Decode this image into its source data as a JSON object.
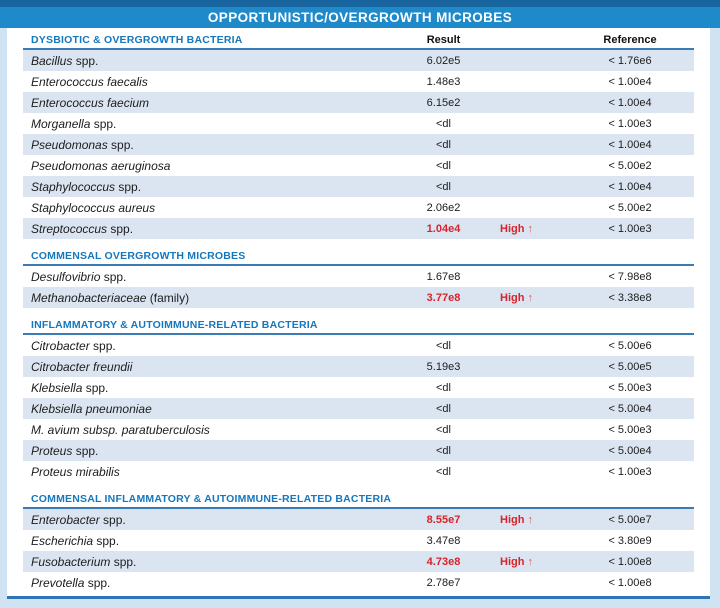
{
  "title": "OPPORTUNISTIC/OVERGROWTH MICROBES",
  "columns": {
    "result": "Result",
    "reference": "Reference"
  },
  "flag": {
    "label": "High",
    "arrow": "↑"
  },
  "colors": {
    "top_strip": "#17649f",
    "title_bar": "#1f8aca",
    "frame": "#cfe3f2",
    "section_heading": "#1577bd",
    "section_rule": "#3a7ab5",
    "shaded_row": "#dbe5f1",
    "high_flag_red": "#d9232a",
    "bottom_rule": "#2e74b5"
  },
  "sections": [
    {
      "heading": "DYSBIOTIC & OVERGROWTH BACTERIA",
      "rows": [
        {
          "name_italic": "Bacillus",
          "name_roman": " spp.",
          "result": "6.02e5",
          "high": false,
          "reference": "< 1.76e6",
          "shaded": true
        },
        {
          "name_italic": "Enterococcus faecalis",
          "name_roman": "",
          "result": "1.48e3",
          "high": false,
          "reference": "< 1.00e4",
          "shaded": false
        },
        {
          "name_italic": "Enterococcus faecium",
          "name_roman": "",
          "result": "6.15e2",
          "high": false,
          "reference": "< 1.00e4",
          "shaded": true
        },
        {
          "name_italic": "Morganella",
          "name_roman": " spp.",
          "result": "<dl",
          "high": false,
          "reference": "< 1.00e3",
          "shaded": false
        },
        {
          "name_italic": "Pseudomonas",
          "name_roman": " spp.",
          "result": "<dl",
          "high": false,
          "reference": "< 1.00e4",
          "shaded": true
        },
        {
          "name_italic": "Pseudomonas aeruginosa",
          "name_roman": "",
          "result": "<dl",
          "high": false,
          "reference": "< 5.00e2",
          "shaded": false
        },
        {
          "name_italic": "Staphylococcus",
          "name_roman": " spp.",
          "result": "<dl",
          "high": false,
          "reference": "< 1.00e4",
          "shaded": true
        },
        {
          "name_italic": "Staphylococcus aureus",
          "name_roman": "",
          "result": "2.06e2",
          "high": false,
          "reference": "< 5.00e2",
          "shaded": false
        },
        {
          "name_italic": "Streptococcus",
          "name_roman": " spp.",
          "result": "1.04e4",
          "high": true,
          "reference": "< 1.00e3",
          "shaded": true
        }
      ]
    },
    {
      "heading": "COMMENSAL OVERGROWTH MICROBES",
      "rows": [
        {
          "name_italic": "Desulfovibrio",
          "name_roman": " spp.",
          "result": "1.67e8",
          "high": false,
          "reference": "< 7.98e8",
          "shaded": false
        },
        {
          "name_italic": "Methanobacteriaceae",
          "name_roman": " (family)",
          "result": "3.77e8",
          "high": true,
          "reference": "< 3.38e8",
          "shaded": true
        }
      ]
    },
    {
      "heading": "INFLAMMATORY & AUTOIMMUNE-RELATED BACTERIA",
      "rows": [
        {
          "name_italic": "Citrobacter",
          "name_roman": " spp.",
          "result": "<dl",
          "high": false,
          "reference": "< 5.00e6",
          "shaded": false
        },
        {
          "name_italic": "Citrobacter freundii",
          "name_roman": "",
          "result": "5.19e3",
          "high": false,
          "reference": "< 5.00e5",
          "shaded": true
        },
        {
          "name_italic": "Klebsiella",
          "name_roman": " spp.",
          "result": "<dl",
          "high": false,
          "reference": "< 5.00e3",
          "shaded": false
        },
        {
          "name_italic": "Klebsiella pneumoniae",
          "name_roman": "",
          "result": "<dl",
          "high": false,
          "reference": "< 5.00e4",
          "shaded": true
        },
        {
          "name_italic": "M. avium subsp. paratuberculosis",
          "name_roman": "",
          "result": "<dl",
          "high": false,
          "reference": "< 5.00e3",
          "shaded": false
        },
        {
          "name_italic": "Proteus",
          "name_roman": " spp.",
          "result": "<dl",
          "high": false,
          "reference": "< 5.00e4",
          "shaded": true
        },
        {
          "name_italic": "Proteus mirabilis",
          "name_roman": "",
          "result": "<dl",
          "high": false,
          "reference": "< 1.00e3",
          "shaded": false
        }
      ]
    },
    {
      "heading": "COMMENSAL INFLAMMATORY & AUTOIMMUNE-RELATED BACTERIA",
      "rows": [
        {
          "name_italic": "Enterobacter",
          "name_roman": " spp.",
          "result": "8.55e7",
          "high": true,
          "reference": "< 5.00e7",
          "shaded": true
        },
        {
          "name_italic": "Escherichia",
          "name_roman": " spp.",
          "result": "3.47e8",
          "high": false,
          "reference": "< 3.80e9",
          "shaded": false
        },
        {
          "name_italic": "Fusobacterium",
          "name_roman": " spp.",
          "result": "4.73e8",
          "high": true,
          "reference": "< 1.00e8",
          "shaded": true
        },
        {
          "name_italic": "Prevotella",
          "name_roman": " spp.",
          "result": "2.78e7",
          "high": false,
          "reference": "< 1.00e8",
          "shaded": false
        }
      ]
    }
  ]
}
